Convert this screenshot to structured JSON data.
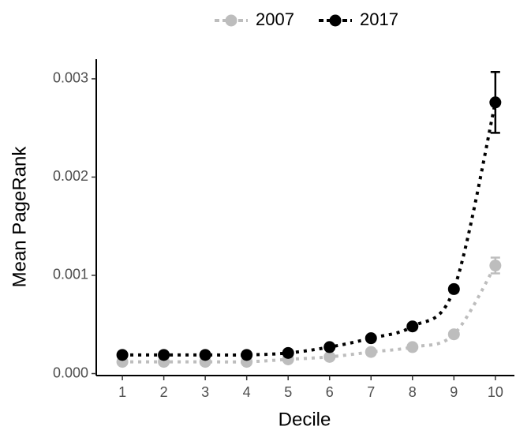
{
  "chart_data": {
    "type": "line",
    "x_label": "Decile",
    "y_label": "Mean PageRank",
    "x": [
      1,
      2,
      3,
      4,
      5,
      6,
      7,
      8,
      9,
      10
    ],
    "series": [
      {
        "name": "2007",
        "color": "#bdbdbd",
        "values": [
          0.00012,
          0.00012,
          0.00012,
          0.00012,
          0.000145,
          0.00017,
          0.00022,
          0.00027,
          0.0004,
          0.0011
        ],
        "errors": [
          1e-05,
          1e-05,
          1e-05,
          1e-05,
          1e-05,
          1e-05,
          1e-05,
          1e-05,
          2e-05,
          8e-05
        ]
      },
      {
        "name": "2017",
        "color": "#000000",
        "values": [
          0.00019,
          0.00019,
          0.00019,
          0.00019,
          0.00021,
          0.00027,
          0.00036,
          0.00048,
          0.00086,
          0.00276
        ],
        "errors": [
          1e-05,
          1e-05,
          1e-05,
          1e-05,
          1e-05,
          1e-05,
          2e-05,
          2e-05,
          3e-05,
          0.00031
        ]
      }
    ],
    "xlim": [
      0.37,
      10.46
    ],
    "xticks": [
      1,
      2,
      3,
      4,
      5,
      6,
      7,
      8,
      9,
      10
    ],
    "ylim": [
      -2e-05,
      0.0032
    ],
    "yticks": [
      {
        "value": 0,
        "label": "0.000"
      },
      {
        "value": 0.001,
        "label": "0.001"
      },
      {
        "value": 0.002,
        "label": "0.002"
      },
      {
        "value": 0.003,
        "label": "0.003"
      }
    ],
    "legend": "top",
    "grid": false
  }
}
